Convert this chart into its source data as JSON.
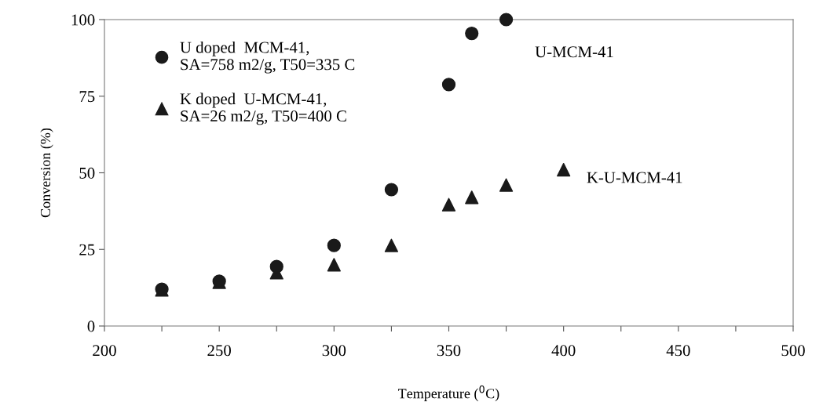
{
  "chart_data": {
    "type": "scatter",
    "xlabel": "Temperature ($^{0}$C)",
    "ylabel": "Conversion (%)",
    "xlim": [
      200,
      500
    ],
    "ylim": [
      0,
      100
    ],
    "xticks": [
      200,
      {
        "value": 225,
        "label": null
      },
      250,
      {
        "value": 275,
        "label": null
      },
      300,
      {
        "value": 325,
        "label": null
      },
      350,
      {
        "value": 375,
        "label": null
      },
      400,
      {
        "value": 425,
        "label": null
      },
      450,
      {
        "value": 475,
        "label": null
      },
      500
    ],
    "yticks": [
      0,
      25,
      50,
      75,
      100
    ],
    "grid": false,
    "legend": "top left",
    "series": [
      {
        "name": "U doped  MCM-41,\nSA=758 m2/g, T50=335 C",
        "color": "#1a1a1a",
        "marker": "circle",
        "x": [
          225,
          250,
          275,
          300,
          325,
          350,
          360,
          375
        ],
        "values": [
          12,
          14.6,
          19.4,
          26.3,
          44.5,
          78.8,
          95.5,
          100
        ]
      },
      {
        "name": "K doped  U-MCM-41,\nSA=26 m2/g, T50=400 C",
        "color": "#1a1a1a",
        "marker": "triangle",
        "x": [
          225,
          250,
          275,
          300,
          325,
          350,
          360,
          375,
          400
        ],
        "values": [
          11.8,
          14.3,
          17.4,
          20,
          26.3,
          39.6,
          42,
          46,
          51
        ]
      }
    ],
    "annotations": [
      "U-MCM-41",
      "K-U-MCM-41"
    ]
  }
}
